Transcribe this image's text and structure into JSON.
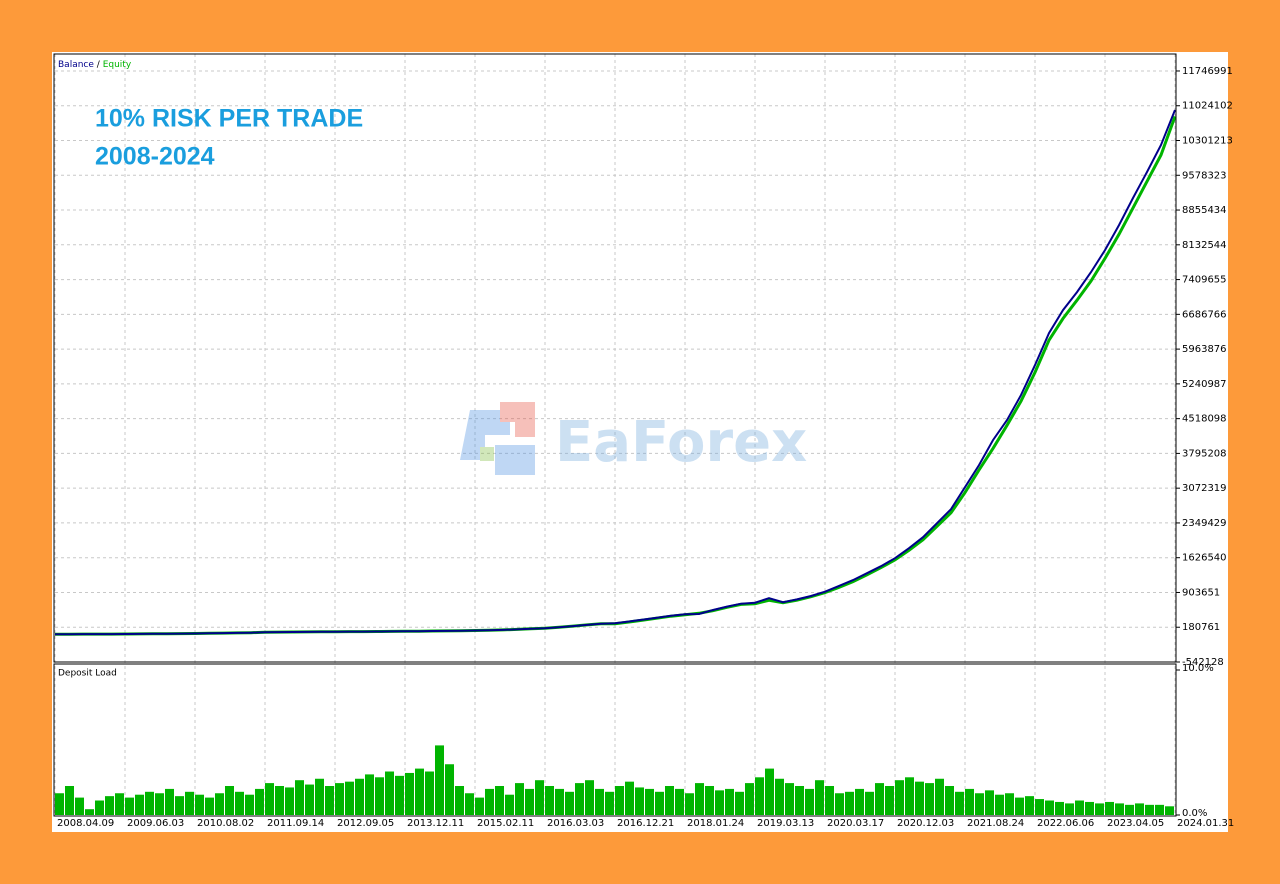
{
  "chart_data": [
    {
      "type": "line",
      "title": "10% RISK PER TRADE",
      "subtitle": "2008-2024",
      "watermark": "EaForex",
      "legend_separator": "/",
      "categories": [
        "2008.04.09",
        null,
        null,
        null,
        null,
        "2009.06.03",
        null,
        null,
        null,
        null,
        "2010.08.02",
        null,
        null,
        null,
        null,
        "2011.09.14",
        null,
        null,
        null,
        null,
        "2012.09.05",
        null,
        null,
        null,
        null,
        "2013.12.11",
        null,
        null,
        null,
        null,
        "2015.02.11",
        null,
        null,
        null,
        null,
        "2016.03.03",
        null,
        null,
        null,
        null,
        "2016.12.21",
        null,
        null,
        null,
        null,
        "2018.01.24",
        null,
        null,
        null,
        null,
        "2019.03.13",
        null,
        null,
        null,
        null,
        "2020.03.17",
        null,
        null,
        null,
        null,
        "2020.12.03",
        null,
        null,
        null,
        null,
        "2021.08.24",
        null,
        null,
        null,
        null,
        "2022.06.06",
        null,
        null,
        null,
        null,
        "2023.04.05",
        null,
        null,
        null,
        null,
        "2024.01.31"
      ],
      "series": [
        {
          "name": "Equity",
          "color": "#00b400",
          "values": [
            35000,
            36000,
            37000,
            38000,
            39000,
            40000,
            42000,
            44000,
            46000,
            48000,
            50000,
            54000,
            58000,
            62000,
            68000,
            77000,
            79000,
            81000,
            83000,
            85000,
            87000,
            89000,
            91000,
            93000,
            95000,
            97000,
            99000,
            102000,
            105000,
            108000,
            112000,
            118000,
            125000,
            135000,
            150000,
            160000,
            180000,
            205000,
            230000,
            255000,
            255000,
            290000,
            330000,
            370000,
            410000,
            440000,
            470000,
            525000,
            595000,
            655000,
            670000,
            740000,
            690000,
            745000,
            815000,
            900000,
            1010000,
            1130000,
            1270000,
            1420000,
            1580000,
            1780000,
            2000000,
            2280000,
            2560000,
            2980000,
            3450000,
            3900000,
            4380000,
            4880000,
            5480000,
            6150000,
            6600000,
            6980000,
            7380000,
            7850000,
            8350000,
            8900000,
            9450000,
            10000000,
            10800000
          ]
        },
        {
          "name": "Balance",
          "color": "#00008b",
          "values": [
            35000,
            36000,
            37000,
            38000,
            39000,
            40000,
            42000,
            44000,
            46000,
            48000,
            50000,
            54000,
            58000,
            62000,
            68000,
            77000,
            79000,
            81000,
            83000,
            85000,
            87000,
            89000,
            91000,
            93000,
            95000,
            97000,
            99000,
            102000,
            105000,
            108000,
            112000,
            118000,
            125000,
            135000,
            150000,
            160000,
            180000,
            205000,
            230000,
            255000,
            264000,
            300000,
            340000,
            380000,
            420000,
            451000,
            455000,
            540000,
            610000,
            670000,
            690000,
            784000,
            701000,
            760000,
            830000,
            920000,
            1040000,
            1160000,
            1304000,
            1450000,
            1616000,
            1824000,
            2053000,
            2344000,
            2636000,
            3093000,
            3551000,
            4071000,
            4487000,
            5007000,
            5631000,
            6297000,
            6775000,
            7150000,
            7566000,
            8023000,
            8543000,
            9105000,
            9646000,
            10208000,
            10936000
          ]
        }
      ],
      "ylim": [
        -542128,
        12100000
      ],
      "yticks": [
        11746991,
        11024102,
        10301213,
        9578323,
        8855434,
        8132544,
        7409655,
        6686766,
        5963876,
        5240987,
        4518098,
        3795208,
        3072319,
        2349429,
        1626540,
        903651,
        180761,
        -542128
      ],
      "grid": true
    },
    {
      "type": "bar",
      "title": "Deposit Load",
      "color": "#00b400",
      "values": [
        1.5,
        2.0,
        1.2,
        0.4,
        1.0,
        1.3,
        1.5,
        1.2,
        1.4,
        1.6,
        1.5,
        1.8,
        1.3,
        1.6,
        1.4,
        1.2,
        1.5,
        2.0,
        1.6,
        1.4,
        1.8,
        2.2,
        2.0,
        1.9,
        2.4,
        2.1,
        2.5,
        2.0,
        2.2,
        2.3,
        2.5,
        2.8,
        2.6,
        3.0,
        2.7,
        2.9,
        3.2,
        3.0,
        4.8,
        3.5,
        2.0,
        1.5,
        1.2,
        1.8,
        2.0,
        1.4,
        2.2,
        1.8,
        2.4,
        2.0,
        1.8,
        1.6,
        2.2,
        2.4,
        1.8,
        1.6,
        2.0,
        2.3,
        1.9,
        1.8,
        1.6,
        2.0,
        1.8,
        1.5,
        2.2,
        2.0,
        1.7,
        1.8,
        1.6,
        2.2,
        2.6,
        3.2,
        2.5,
        2.2,
        2.0,
        1.8,
        2.4,
        2.0,
        1.5,
        1.6,
        1.8,
        1.6,
        2.2,
        2.0,
        2.4,
        2.6,
        2.3,
        2.2,
        2.5,
        2.0,
        1.6,
        1.8,
        1.5,
        1.7,
        1.4,
        1.5,
        1.2,
        1.3,
        1.1,
        1.0,
        0.9,
        0.8,
        1.0,
        0.9,
        0.8,
        0.9,
        0.8,
        0.7,
        0.8,
        0.7,
        0.7,
        0.6
      ],
      "ylim": [
        0,
        10
      ],
      "yticks": [
        {
          "value": 10,
          "label": "10.0%"
        },
        {
          "value": 0,
          "label": "0.0%"
        }
      ]
    }
  ]
}
